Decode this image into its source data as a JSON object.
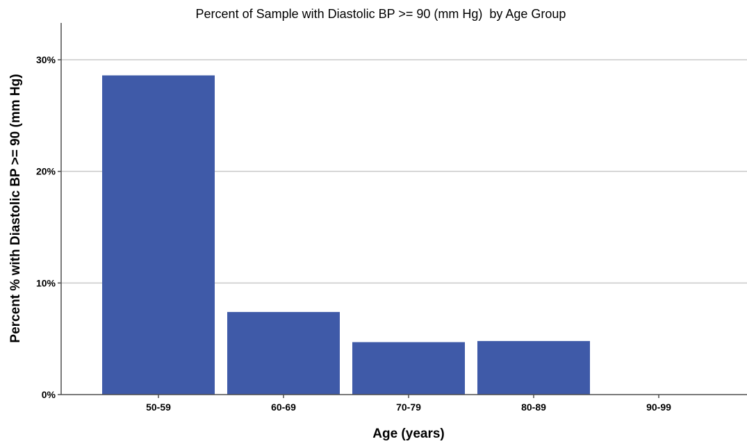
{
  "chart_data": {
    "type": "bar",
    "title": "Percent of Sample with Diastolic BP >= 90 (mm Hg)  by Age Group",
    "xlabel": "Age (years)",
    "ylabel": "Percent % with Diastolic BP >= 90 (mm Hg)",
    "categories": [
      "50-59",
      "60-69",
      "70-79",
      "80-89",
      "90-99"
    ],
    "values": [
      28.6,
      7.4,
      4.7,
      4.8,
      0
    ],
    "ylim": [
      0,
      33.3
    ],
    "yticks": [
      0,
      10,
      20,
      30
    ],
    "ytick_labels": [
      "0%",
      "10%",
      "20%",
      "30%"
    ],
    "grid": true,
    "legend": "none",
    "colors": {
      "bar": "#3F5AA8",
      "grid": "#C8C8C8",
      "axis": "#4D4D4D",
      "text": "#000000"
    }
  }
}
